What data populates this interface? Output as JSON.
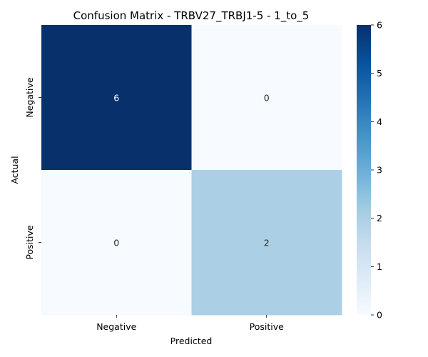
{
  "chart_data": {
    "type": "heatmap",
    "title": "Confusion Matrix - TRBV27_TRBJ1-5 - 1_to_5",
    "xlabel": "Predicted",
    "ylabel": "Actual",
    "x_categories": [
      "Negative",
      "Positive"
    ],
    "y_categories": [
      "Negative",
      "Positive"
    ],
    "values": [
      [
        6,
        0
      ],
      [
        0,
        2
      ]
    ],
    "colorbar": {
      "min": 0,
      "max": 6,
      "ticks": [
        0,
        1,
        2,
        3,
        4,
        5,
        6
      ]
    },
    "colormap": "Blues",
    "colors": {
      "low": "#f7fbff",
      "high": "#08306b",
      "text_on_dark": "#ffffff",
      "text_on_light": "#262626"
    }
  }
}
